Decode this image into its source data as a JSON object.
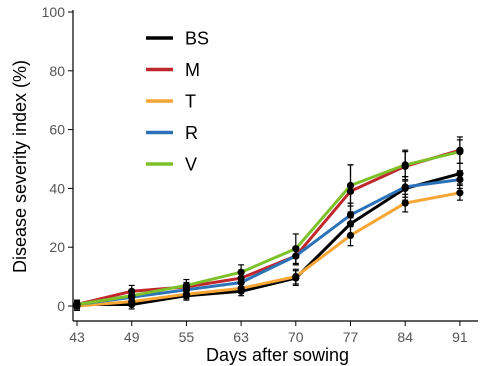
{
  "chart_data": {
    "type": "line",
    "title": "",
    "xlabel": "Days after sowing",
    "ylabel": "Disease severity index (%)",
    "categories": [
      "43",
      "49",
      "55",
      "63",
      "70",
      "77",
      "84",
      "91"
    ],
    "ylim": [
      0,
      100
    ],
    "yticks": [
      "0",
      "20",
      "40",
      "60",
      "80",
      "100"
    ],
    "grid": false,
    "legend_position": "top-left",
    "series": [
      {
        "name": "BS",
        "color": "#000000",
        "values": [
          0.5,
          0.5,
          3.5,
          5,
          9.5,
          28,
          40,
          45
        ],
        "errors": [
          1.5,
          1.5,
          1.5,
          1.5,
          2.5,
          4,
          4,
          3.5
        ]
      },
      {
        "name": "M",
        "color": "#c0272d",
        "values": [
          0.5,
          5,
          6.5,
          9.5,
          17,
          39,
          47.5,
          53
        ],
        "errors": [
          1.5,
          2,
          1.5,
          2,
          3,
          9,
          5,
          4.5
        ]
      },
      {
        "name": "T",
        "color": "#f7a535",
        "values": [
          0,
          1.5,
          4,
          6,
          10,
          24,
          35,
          38.5
        ],
        "errors": [
          1.5,
          1.5,
          1.5,
          1.5,
          2.5,
          3.5,
          3,
          2.5
        ]
      },
      {
        "name": "R",
        "color": "#2b72b8",
        "values": [
          0.5,
          3,
          5.5,
          8,
          17,
          31,
          40.5,
          43
        ],
        "errors": [
          1.5,
          1.5,
          1.5,
          2,
          3,
          4,
          3.5,
          3
        ]
      },
      {
        "name": "V",
        "color": "#7dc12a",
        "values": [
          0.5,
          3.5,
          7,
          11.5,
          19.5,
          41,
          48,
          52.5
        ],
        "errors": [
          1.5,
          2,
          2,
          2.5,
          5,
          7,
          5,
          4
        ]
      }
    ]
  }
}
